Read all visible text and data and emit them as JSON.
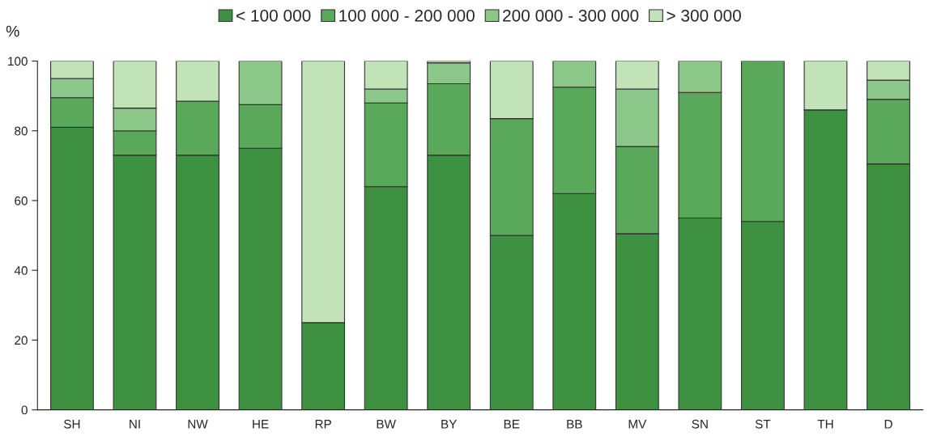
{
  "chart_data": {
    "type": "bar",
    "stacked": true,
    "ylabel": "%",
    "categories": [
      "SH",
      "NI",
      "NW",
      "HE",
      "RP",
      "BW",
      "BY",
      "BE",
      "BB",
      "MV",
      "SN",
      "ST",
      "TH",
      "D"
    ],
    "series": [
      {
        "name": "< 100 000",
        "color": "#3f9142",
        "values": [
          81,
          73,
          73,
          75,
          25,
          64,
          73,
          50,
          62,
          50.5,
          55,
          54,
          86,
          70.5
        ]
      },
      {
        "name": "100 000 - 200 000",
        "color": "#5aa85a",
        "values": [
          8.5,
          7,
          15.5,
          12.5,
          0,
          24,
          20.5,
          33.5,
          30.5,
          25,
          36,
          46,
          0,
          18.5
        ]
      },
      {
        "name": "200 000 - 300 000",
        "color": "#8cc78a",
        "values": [
          5.5,
          6.5,
          0,
          12.5,
          0,
          4,
          6,
          0,
          7.5,
          16.5,
          9,
          0,
          0,
          5.5
        ]
      },
      {
        "name": "> 300 000",
        "color": "#c2e2b8",
        "values": [
          5,
          13.5,
          11.5,
          0,
          75,
          8,
          0.5,
          16.5,
          0,
          8,
          0,
          0,
          14,
          5.5
        ]
      }
    ],
    "ylim": [
      0,
      100
    ],
    "yticks": [
      0,
      20,
      40,
      60,
      80,
      100
    ],
    "grid": false,
    "legend": "top"
  }
}
